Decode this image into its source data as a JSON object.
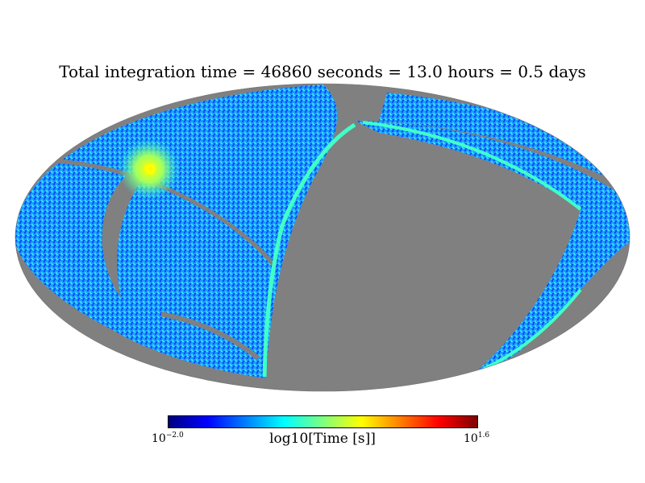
{
  "chart_data": {
    "type": "heatmap",
    "projection": "mollweide",
    "title": "Total integration time = 46860 seconds = 13.0 hours = 0.5 days",
    "colorbar": {
      "label": "log10[Time [s]]",
      "min_base": "10",
      "min_exp": "−2.0",
      "max_base": "10",
      "max_exp": "1.6",
      "min_log10": -2.0,
      "max_log10": 1.6,
      "colormap": "jet"
    },
    "colors": {
      "unobserved": "#808080",
      "colormap_stops": [
        "#00007f",
        "#0000ff",
        "#007fff",
        "#00ffff",
        "#7fff7f",
        "#ffff00",
        "#ff7f00",
        "#ff0000",
        "#7f0000"
      ]
    }
  }
}
